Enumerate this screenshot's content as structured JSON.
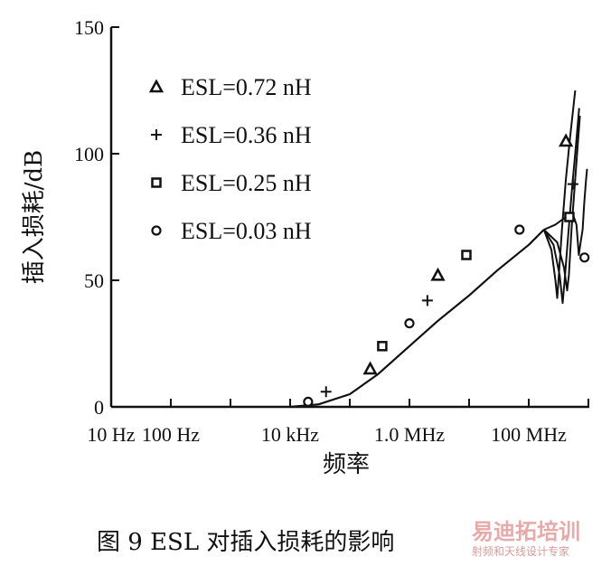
{
  "chart_data": {
    "type": "line",
    "ylabel": "插入损耗/dB",
    "xlabel": "频率",
    "x_scale": "log",
    "ylim": [
      0,
      150
    ],
    "xlim_hz": [
      10,
      1000000000
    ],
    "y_ticks": [
      {
        "value": 0,
        "label": "0"
      },
      {
        "value": 50,
        "label": "50"
      },
      {
        "value": 100,
        "label": "100"
      },
      {
        "value": 150,
        "label": "150"
      }
    ],
    "x_ticks": [
      {
        "value_hz": 10,
        "label": "10 Hz"
      },
      {
        "value_hz": 100,
        "label": "100 Hz"
      },
      {
        "value_hz": 10000,
        "label": "10 kHz"
      },
      {
        "value_hz": 1000000,
        "label": "1.0 MHz"
      },
      {
        "value_hz": 100000000,
        "label": "100 MHz"
      }
    ],
    "legend_placement": "top-left",
    "common_rise": [
      [
        10000,
        0
      ],
      [
        30000,
        1
      ],
      [
        100000,
        5
      ],
      [
        300000,
        13
      ],
      [
        1000000,
        24
      ],
      [
        3000000,
        34
      ],
      [
        10000000,
        44
      ],
      [
        30000000,
        54
      ],
      [
        100000000,
        64
      ],
      [
        180000000,
        70
      ]
    ],
    "series": [
      {
        "name": "ESL=0.72 nH",
        "marker": "triangle",
        "values": [
          [
            180000000,
            70
          ],
          [
            240000000,
            62
          ],
          [
            280000000,
            50
          ],
          [
            300000000,
            43
          ],
          [
            320000000,
            52
          ],
          [
            360000000,
            70
          ],
          [
            420000000,
            90
          ],
          [
            490000000,
            106
          ],
          [
            600000000,
            125
          ]
        ],
        "marker_points": [
          [
            220000,
            15
          ],
          [
            3000000,
            52
          ],
          [
            420000000,
            105
          ]
        ]
      },
      {
        "name": "ESL=0.36 nH",
        "marker": "plus",
        "values": [
          [
            180000000,
            70
          ],
          [
            260000000,
            64
          ],
          [
            330000000,
            52
          ],
          [
            370000000,
            41
          ],
          [
            400000000,
            50
          ],
          [
            460000000,
            68
          ],
          [
            540000000,
            88
          ],
          [
            600000000,
            100
          ],
          [
            700000000,
            118
          ]
        ],
        "marker_points": [
          [
            40000,
            6
          ],
          [
            2000000,
            42
          ],
          [
            550000000,
            88
          ]
        ]
      },
      {
        "name": "ESL=0.25 nH",
        "marker": "square",
        "values": [
          [
            180000000,
            70
          ],
          [
            300000000,
            65
          ],
          [
            390000000,
            55
          ],
          [
            440000000,
            46
          ],
          [
            470000000,
            52
          ],
          [
            520000000,
            70
          ],
          [
            600000000,
            90
          ],
          [
            720000000,
            115
          ]
        ],
        "marker_points": [
          [
            350000,
            24
          ],
          [
            9000000,
            60
          ],
          [
            480000000,
            75
          ]
        ]
      },
      {
        "name": "ESL=0.03 nH",
        "marker": "circle",
        "values": [
          [
            180000000,
            70
          ],
          [
            280000000,
            72
          ],
          [
            420000000,
            75
          ],
          [
            550000000,
            76
          ],
          [
            630000000,
            72
          ],
          [
            690000000,
            60
          ],
          [
            740000000,
            65
          ],
          [
            800000000,
            70
          ],
          [
            850000000,
            80
          ],
          [
            900000000,
            88
          ],
          [
            950000000,
            94
          ]
        ],
        "marker_points": [
          [
            20000,
            2
          ],
          [
            1000000,
            33
          ],
          [
            70000000,
            70
          ],
          [
            860000000,
            59
          ]
        ]
      }
    ]
  },
  "caption": "图 9 ESL 对插入损耗的影响",
  "watermark": {
    "main": "易迪拓培训",
    "sub": "射频和天线设计专家"
  }
}
